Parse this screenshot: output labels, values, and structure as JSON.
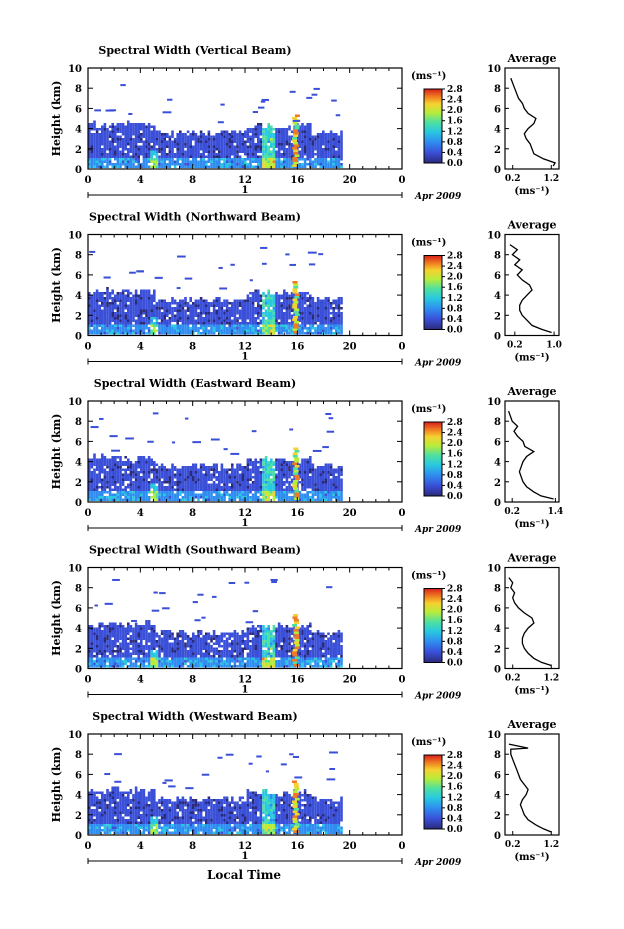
{
  "figure": {
    "colorbar_unit": "(ms⁻¹)",
    "colorbar_ticks": [
      "0.0",
      "0.4",
      "0.8",
      "1.2",
      "1.6",
      "2.0",
      "2.4",
      "2.8"
    ],
    "avg_title": "Average",
    "avg_unit": "(ms⁻¹)",
    "x_ticks": [
      "0",
      "4",
      "8",
      "12",
      "16",
      "20",
      "0"
    ],
    "y_ticks": [
      "0",
      "2",
      "4",
      "6",
      "8",
      "10"
    ],
    "ylabel": "Height (km)",
    "date_day": "1",
    "date_month": "Apr 2009",
    "xlabel": "Local Time"
  },
  "chart_data": [
    {
      "type": "heatmap",
      "title": "Spectral Width (Vertical Beam)",
      "xlabel": "Local Time",
      "ylabel": "Height (km)",
      "xlim": [
        0,
        24
      ],
      "ylim": [
        0,
        10
      ],
      "colorbar_range": [
        0.0,
        2.8
      ],
      "profile": {
        "type": "line",
        "title": "Average",
        "xlabel": "(ms⁻¹)",
        "x_ticks": [
          "0.2",
          "1.2"
        ],
        "xlim": [
          0.0,
          1.4
        ],
        "heights": [
          0.3,
          0.6,
          1.0,
          1.5,
          2.0,
          2.5,
          3.0,
          3.5,
          4.0,
          4.5,
          5.0,
          5.5,
          6.0,
          6.5,
          7.0,
          7.5,
          8.0,
          8.5,
          9.0
        ],
        "values": [
          1.25,
          1.3,
          1.0,
          0.75,
          0.7,
          0.65,
          0.55,
          0.5,
          0.6,
          0.75,
          0.8,
          0.6,
          0.5,
          0.45,
          0.35,
          0.3,
          0.25,
          0.2,
          0.15
        ]
      }
    },
    {
      "type": "heatmap",
      "title": "Spectral Width (Northward Beam)",
      "xlabel": "Local Time",
      "ylabel": "Height (km)",
      "xlim": [
        0,
        24
      ],
      "ylim": [
        0,
        10
      ],
      "colorbar_range": [
        0.0,
        2.8
      ],
      "profile": {
        "type": "line",
        "title": "Average",
        "xlabel": "(ms⁻¹)",
        "x_ticks": [
          "0.2",
          "1.0"
        ],
        "xlim": [
          0.0,
          1.1
        ],
        "heights": [
          0.3,
          0.6,
          1.0,
          1.5,
          2.0,
          2.5,
          3.0,
          3.5,
          4.0,
          4.5,
          5.0,
          5.5,
          6.0,
          6.5,
          7.0,
          7.5,
          8.0,
          8.5,
          9.0
        ],
        "values": [
          0.95,
          0.75,
          0.55,
          0.45,
          0.35,
          0.3,
          0.3,
          0.35,
          0.45,
          0.55,
          0.5,
          0.35,
          0.25,
          0.35,
          0.2,
          0.3,
          0.15,
          0.25,
          0.1
        ]
      }
    },
    {
      "type": "heatmap",
      "title": "Spectral Width (Eastward Beam)",
      "xlabel": "Local Time",
      "ylabel": "Height (km)",
      "xlim": [
        0,
        24
      ],
      "ylim": [
        0,
        10
      ],
      "colorbar_range": [
        0.0,
        2.8
      ],
      "profile": {
        "type": "line",
        "title": "Average",
        "xlabel": "(ms⁻¹)",
        "x_ticks": [
          "0.2",
          "1.4"
        ],
        "xlim": [
          0.0,
          1.5
        ],
        "heights": [
          0.3,
          0.6,
          1.0,
          1.5,
          2.0,
          2.5,
          3.0,
          3.5,
          4.0,
          4.5,
          5.0,
          5.5,
          6.0,
          6.5,
          7.0,
          7.5,
          8.0,
          8.5,
          9.0
        ],
        "values": [
          1.35,
          1.0,
          0.8,
          0.6,
          0.5,
          0.45,
          0.4,
          0.45,
          0.5,
          0.6,
          0.8,
          0.55,
          0.5,
          0.35,
          0.25,
          0.35,
          0.2,
          0.15,
          0.1
        ]
      }
    },
    {
      "type": "heatmap",
      "title": "Spectral Width (Southward Beam)",
      "xlabel": "Local Time",
      "ylabel": "Height (km)",
      "xlim": [
        0,
        24
      ],
      "ylim": [
        0,
        10
      ],
      "colorbar_range": [
        0.0,
        2.8
      ],
      "profile": {
        "type": "line",
        "title": "Average",
        "xlabel": "(ms⁻¹)",
        "x_ticks": [
          "0.2",
          "1.2"
        ],
        "xlim": [
          0.0,
          1.4
        ],
        "heights": [
          0.3,
          0.6,
          1.0,
          1.5,
          2.0,
          2.5,
          3.0,
          3.5,
          4.0,
          4.5,
          5.0,
          5.5,
          6.0,
          6.5,
          7.0,
          7.5,
          8.0,
          8.5,
          9.0
        ],
        "values": [
          1.2,
          0.95,
          0.75,
          0.6,
          0.5,
          0.45,
          0.45,
          0.5,
          0.6,
          0.75,
          0.7,
          0.5,
          0.35,
          0.25,
          0.2,
          0.25,
          0.15,
          0.2,
          0.1
        ]
      }
    },
    {
      "type": "heatmap",
      "title": "Spectral Width (Westward Beam)",
      "xlabel": "Local Time",
      "ylabel": "Height (km)",
      "xlim": [
        0,
        24
      ],
      "ylim": [
        0,
        10
      ],
      "colorbar_range": [
        0.0,
        2.8
      ],
      "profile": {
        "type": "line",
        "title": "Average",
        "xlabel": "(ms⁻¹)",
        "x_ticks": [
          "0.2",
          "1.2"
        ],
        "xlim": [
          0.0,
          1.4
        ],
        "heights": [
          0.3,
          0.6,
          1.0,
          1.5,
          2.0,
          2.5,
          3.0,
          3.5,
          4.0,
          4.5,
          5.0,
          5.5,
          6.0,
          6.5,
          7.0,
          7.5,
          8.0,
          8.5,
          8.6,
          9.0
        ],
        "values": [
          1.2,
          1.0,
          0.8,
          0.6,
          0.5,
          0.45,
          0.4,
          0.45,
          0.55,
          0.6,
          0.5,
          0.4,
          0.35,
          0.3,
          0.25,
          0.2,
          0.15,
          0.15,
          0.6,
          0.1
        ]
      }
    }
  ]
}
